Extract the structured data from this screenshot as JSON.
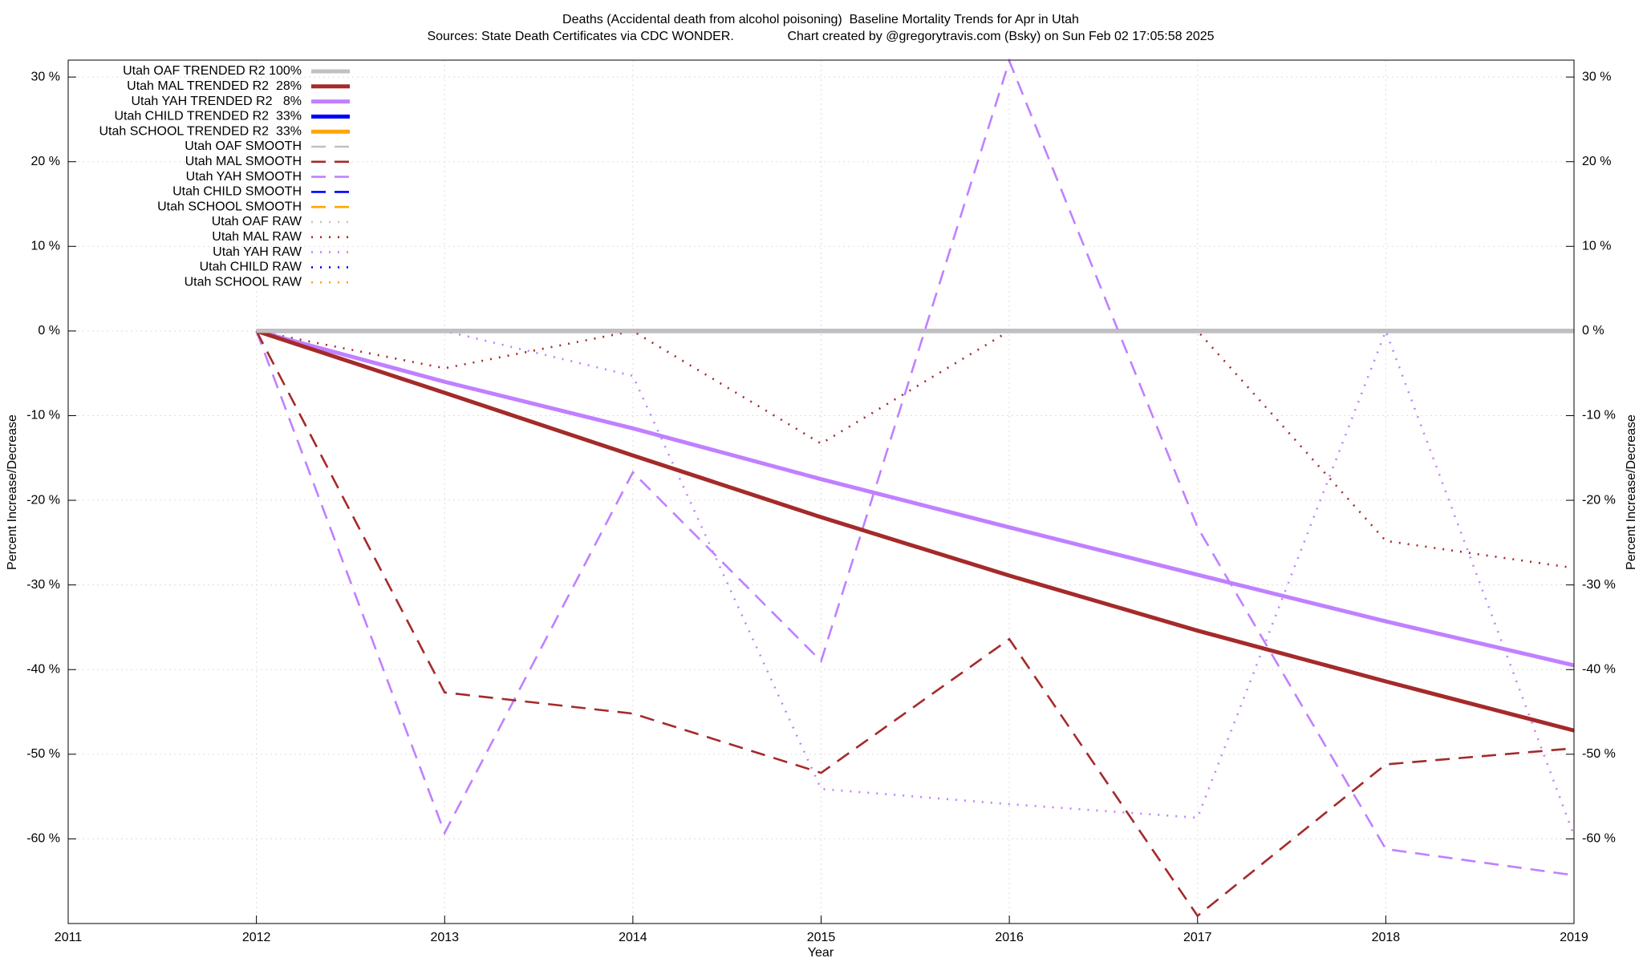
{
  "chart_data": {
    "type": "line",
    "title": "Deaths (Accidental death from alcohol poisoning)  Baseline Mortality Trends for Apr in Utah",
    "subtitle": "Sources: State Death Certificates via CDC WONDER.               Chart created by @gregorytravis.com (Bsky) on Sun Feb 02 17:05:58 2025",
    "x_label": "Year",
    "y_label": "Percent Increase/Decrease",
    "y2_label": "Percent Increase/Decrease",
    "x": [
      2012,
      2013,
      2014,
      2015,
      2016,
      2017,
      2018,
      2019
    ],
    "xlim": [
      2011,
      2019
    ],
    "xticks": [
      2011,
      2012,
      2013,
      2014,
      2015,
      2016,
      2017,
      2018,
      2019
    ],
    "ylim": [
      -70,
      32
    ],
    "yticks": [
      {
        "value": -60,
        "label": "-60 %"
      },
      {
        "value": -50,
        "label": "-50 %"
      },
      {
        "value": -40,
        "label": "-40 %"
      },
      {
        "value": -30,
        "label": "-30 %"
      },
      {
        "value": -20,
        "label": "-20 %"
      },
      {
        "value": -10,
        "label": "-10 %"
      },
      {
        "value": 0,
        "label": "0 %"
      },
      {
        "value": 10,
        "label": "10 %"
      },
      {
        "value": 20,
        "label": "20 %"
      },
      {
        "value": 30,
        "label": "30 %"
      }
    ],
    "grid": true,
    "legend": "top-left",
    "series": [
      {
        "name": "Utah OAF TRENDED R2 100%",
        "color": "#c0c0c0",
        "dash": "solid",
        "values": [
          0,
          0,
          0,
          0,
          0,
          0,
          0,
          0
        ]
      },
      {
        "name": "Utah MAL TRENDED R2  28%",
        "color": "#a52a2a",
        "dash": "solid",
        "values": [
          0,
          -7.3,
          -14.7,
          -22,
          -28.9,
          -35.4,
          -41.4,
          -47.2
        ]
      },
      {
        "name": "Utah YAH TRENDED R2   8%",
        "color": "#c080ff",
        "dash": "solid",
        "values": [
          0,
          -6,
          -11.5,
          -17.5,
          -23.2,
          -28.8,
          -34.3,
          -39.5
        ]
      },
      {
        "name": "Utah CHILD TRENDED R2  33%",
        "color": "#0000ff",
        "dash": "solid",
        "values": [
          0,
          0,
          0,
          0,
          0,
          0,
          0,
          0
        ]
      },
      {
        "name": "Utah SCHOOL TRENDED R2  33%",
        "color": "#ffa500",
        "dash": "solid",
        "values": [
          0,
          0,
          0,
          0,
          0,
          0,
          0,
          0
        ]
      },
      {
        "name": "Utah OAF SMOOTH",
        "color": "#c0c0c0",
        "dash": "dashed",
        "values": [
          0,
          0,
          0,
          0,
          0,
          0,
          0,
          0
        ]
      },
      {
        "name": "Utah MAL SMOOTH",
        "color": "#a52a2a",
        "dash": "dashed",
        "values": [
          0,
          -42.7,
          -45.2,
          -52.2,
          -36.4,
          -69.1,
          -51.2,
          -49.3
        ]
      },
      {
        "name": "Utah YAH SMOOTH",
        "color": "#c080ff",
        "dash": "dashed",
        "values": [
          0,
          -59.3,
          -16.7,
          -39,
          31.9,
          -23.2,
          -61.2,
          -64.3
        ]
      },
      {
        "name": "Utah CHILD SMOOTH",
        "color": "#0000ff",
        "dash": "dashed",
        "values": [
          0,
          0,
          0,
          0,
          0,
          0,
          0,
          0
        ]
      },
      {
        "name": "Utah SCHOOL SMOOTH",
        "color": "#ffa500",
        "dash": "dashed",
        "values": [
          0,
          0,
          0,
          0,
          0,
          0,
          0,
          0
        ]
      },
      {
        "name": "Utah OAF RAW",
        "color": "#c0c0c0",
        "dash": "dotted",
        "values": [
          0,
          0,
          0,
          0,
          0,
          0,
          0,
          0
        ]
      },
      {
        "name": "Utah MAL RAW",
        "color": "#a52a2a",
        "dash": "dotted",
        "values": [
          0,
          -4.4,
          0,
          -13.3,
          0,
          0,
          -24.8,
          -28
        ]
      },
      {
        "name": "Utah YAH RAW",
        "color": "#c080ff",
        "dash": "dotted",
        "values": [
          0,
          0,
          -5.3,
          -54.1,
          -55.9,
          -57.5,
          0,
          -59.6
        ]
      },
      {
        "name": "Utah CHILD RAW",
        "color": "#0000ff",
        "dash": "dotted",
        "values": [
          0,
          0,
          0,
          0,
          0,
          0,
          0,
          0
        ]
      },
      {
        "name": "Utah SCHOOL RAW",
        "color": "#ffa500",
        "dash": "dotted",
        "values": [
          0,
          0,
          0,
          0,
          0,
          0,
          0,
          0
        ]
      }
    ]
  }
}
